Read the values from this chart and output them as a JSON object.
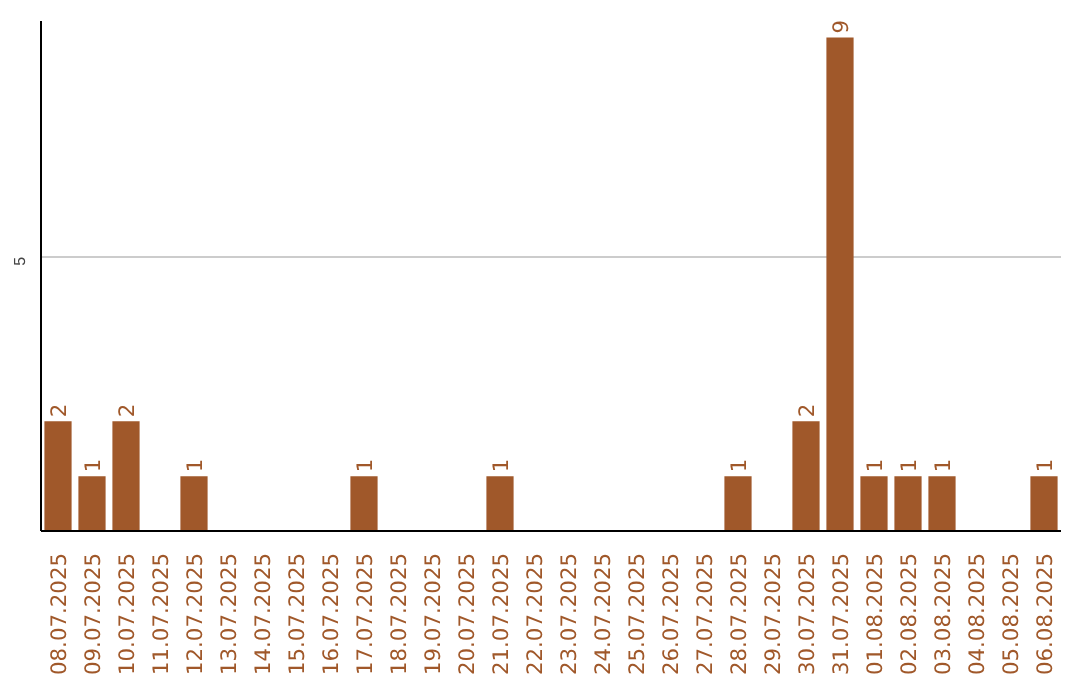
{
  "chart_data": {
    "type": "bar",
    "categories": [
      "08.07.2025",
      "09.07.2025",
      "10.07.2025",
      "11.07.2025",
      "12.07.2025",
      "13.07.2025",
      "14.07.2025",
      "15.07.2025",
      "16.07.2025",
      "17.07.2025",
      "18.07.2025",
      "19.07.2025",
      "20.07.2025",
      "21.07.2025",
      "22.07.2025",
      "23.07.2025",
      "24.07.2025",
      "25.07.2025",
      "26.07.2025",
      "27.07.2025",
      "28.07.2025",
      "29.07.2025",
      "30.07.2025",
      "31.07.2025",
      "01.08.2025",
      "02.08.2025",
      "03.08.2025",
      "04.08.2025",
      "05.08.2025",
      "06.08.2025"
    ],
    "values": [
      2,
      1,
      2,
      0,
      1,
      0,
      0,
      0,
      0,
      1,
      0,
      0,
      0,
      1,
      0,
      0,
      0,
      0,
      0,
      0,
      1,
      0,
      2,
      9,
      1,
      1,
      1,
      0,
      0,
      1
    ],
    "value_labels": [
      "2",
      "1",
      "2",
      null,
      "1",
      null,
      null,
      null,
      null,
      "1",
      null,
      null,
      null,
      "1",
      null,
      null,
      null,
      null,
      null,
      null,
      "1",
      null,
      "2",
      "9",
      "1",
      "1",
      "1",
      null,
      null,
      "1"
    ],
    "color": "#a0582a",
    "ylim": [
      0,
      9.3
    ],
    "yticks": [
      5
    ],
    "grid": "y"
  }
}
